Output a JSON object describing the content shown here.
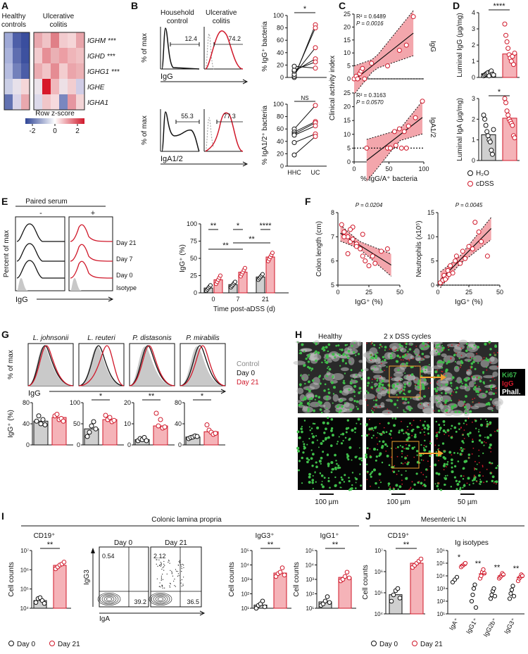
{
  "panels": {
    "A": "A",
    "B": "B",
    "C": "C",
    "D": "D",
    "E": "E",
    "F": "F",
    "G": "G",
    "H": "H",
    "I": "I",
    "J": "J"
  },
  "A": {
    "col_healthy": "Healthy\ncontrols",
    "col_uc": "Ulcerative\ncolitis",
    "genes": [
      "IGHM ***",
      "IGHD ***",
      "IGHG1 ***",
      "IGHE",
      "IGHA1"
    ],
    "legend_title": "Row z-score",
    "legend_ticks": [
      "-2",
      "0",
      "2"
    ],
    "healthy_rows": [
      [
        "#9fa9d6",
        "#4e5fa8",
        "#3a4e9e"
      ],
      [
        "#aab3db",
        "#5f6eb0",
        "#3d519f"
      ],
      [
        "#b6bde0",
        "#7381bb",
        "#4b5da7"
      ],
      [
        "#cbcfe6",
        "#e7e1ea",
        "#f4d6d8"
      ],
      [
        "#6272b2",
        "#d9d4e8",
        "#e9a8ae"
      ]
    ],
    "uc_rows": [
      [
        "#e9a8ae",
        "#f0c3c6",
        "#e07f87",
        "#f2cbce",
        "#f5d5d7",
        "#e8a4aa"
      ],
      [
        "#f2cbce",
        "#e68f96",
        "#eab0b4",
        "#ec9ea4",
        "#efb5b9",
        "#f0c0c3"
      ],
      [
        "#ebacb1",
        "#f1c4c7",
        "#e58c93",
        "#f3cdcf",
        "#eba5ab",
        "#ecb1b5"
      ],
      [
        "#ebe3ea",
        "#d7192a",
        "#f0b8bc",
        "#ede0e6",
        "#f2cdd0",
        "#d0cce6"
      ],
      [
        "#dcd9ea",
        "#f1c6c9",
        "#f6dadd",
        "#7a87bf",
        "#e596a0",
        "#f3d4d6"
      ]
    ],
    "colors": {
      "blue": "#2f4596",
      "red": "#d0182a"
    }
  },
  "B": {
    "household": "Household\ncontrol",
    "uc": "Ulcerative\ncolitis",
    "ylabel": "% of max",
    "igg": "IgG",
    "iga": "IgA1/2",
    "top_vals": [
      "12.4",
      "74.2"
    ],
    "bot_vals": [
      "55.3",
      "77.3"
    ],
    "paired_top": {
      "ylabel": "% IgG⁺ bacteria",
      "ticks": [
        "0",
        "20",
        "40",
        "60",
        "80",
        "100"
      ],
      "sig": "*",
      "hhc": [
        0,
        2,
        5,
        10,
        12,
        18
      ],
      "uc": [
        85,
        80,
        48,
        30,
        25,
        15
      ]
    },
    "paired_bot": {
      "ylabel": "% IgA1/2⁺ bacteria",
      "ticks": [
        "0",
        "20",
        "40",
        "60",
        "80",
        "100"
      ],
      "sig": "NS",
      "hhc": [
        60,
        55,
        52,
        50,
        38,
        18
      ],
      "uc": [
        98,
        72,
        70,
        65,
        52,
        48
      ],
      "xt": [
        "HHC",
        "UC"
      ]
    }
  },
  "C": {
    "ylabel": "Clinical activity index",
    "xlabel": "% IgG/A⁺ bacteria",
    "xticks": [
      "0",
      "50",
      "100"
    ],
    "yticks": [
      "0",
      "5",
      "10",
      "15",
      "20",
      "25"
    ],
    "top": {
      "label": "IgG",
      "r2": "R² = 0.6489",
      "p": "P = 0.0016",
      "x": [
        0,
        3,
        5,
        8,
        10,
        12,
        15,
        25,
        48,
        65,
        75,
        85
      ],
      "y": [
        0,
        1,
        0,
        2,
        3,
        4,
        0,
        6,
        5,
        11,
        13,
        24
      ]
    },
    "bot": {
      "label": "IgA1/2",
      "r2": "R² = 0.3163",
      "p": "P = 0.0570",
      "x": [
        18,
        48,
        52,
        58,
        60,
        65,
        68,
        72,
        75,
        78,
        88,
        98
      ],
      "y": [
        5,
        5,
        5,
        11,
        6,
        12,
        5,
        11,
        5,
        13,
        16,
        22
      ]
    }
  },
  "D": {
    "top": {
      "ylabel": "Luminal IgG (µg/mg)",
      "ticks": [
        "0",
        "1",
        "2",
        "3",
        "4"
      ],
      "sig": "****",
      "h2o": [
        0.1,
        0.15,
        0.2,
        0.25,
        0.3,
        0.1,
        0.35,
        0.4,
        0.2,
        0.15
      ],
      "dss": [
        3.3,
        2.6,
        2.2,
        1.8,
        1.4,
        1.2,
        1.0,
        1.3,
        0.8,
        1.5
      ],
      "mean": [
        0.23,
        1.45
      ]
    },
    "bot": {
      "ylabel": "Luminal IgA (µg/mg)",
      "ticks": [
        "0",
        "1",
        "2",
        "3"
      ],
      "sig": "*",
      "h2o": [
        2.2,
        2.0,
        1.7,
        1.4,
        1.2,
        1.0,
        0.9,
        0.5,
        0.3,
        1.5
      ],
      "dss": [
        3.0,
        2.8,
        2.4,
        2.2,
        2.0,
        1.9,
        1.8,
        1.7,
        1.2,
        1.1
      ],
      "mean": [
        1.25,
        2.05
      ]
    },
    "legend": [
      "H₂O",
      "cDSS"
    ]
  },
  "E": {
    "paired": "Paired serum",
    "minus": "-",
    "plus": "+",
    "ylabel": "Percent of max",
    "xlabel": "IgG",
    "rows": [
      "Day 21",
      "Day 7",
      "Day 0",
      "Isotype"
    ],
    "bar": {
      "ylabel": "IgG⁺ (%)",
      "xlabel": "Time post-aDSS (d)",
      "yticks": [
        "0",
        "25",
        "50",
        "75",
        "100"
      ],
      "xt": [
        "0",
        "7",
        "21"
      ],
      "gray": [
        7,
        12,
        23
      ],
      "red": [
        19,
        30,
        52
      ],
      "sig": [
        "**",
        "*",
        "****",
        "**",
        "**"
      ]
    }
  },
  "F": {
    "left": {
      "p": "P = 0.0204",
      "ylabel": "Colon length (cm)",
      "xlabel": "IgG⁺ (%)",
      "yticks": [
        "5",
        "6",
        "7",
        "8"
      ],
      "xticks": [
        "0",
        "25",
        "50"
      ],
      "x": [
        3,
        5,
        8,
        10,
        12,
        15,
        18,
        20,
        22,
        25,
        5,
        8,
        12,
        15,
        20,
        28,
        30,
        35,
        40,
        10
      ],
      "y": [
        7.5,
        7.2,
        7.0,
        6.8,
        7.4,
        6.7,
        6.5,
        6.2,
        6.0,
        5.8,
        7.0,
        6.3,
        6.9,
        6.6,
        7.1,
        6.2,
        5.9,
        6.4,
        6.5,
        7.3
      ]
    },
    "right": {
      "p": "P = 0.0045",
      "ylabel": "Neutrophils (x10⁵)",
      "xlabel": "IgG⁺ (%)",
      "yticks": [
        "0",
        "5",
        "10",
        "15"
      ],
      "xticks": [
        "0",
        "25",
        "50"
      ],
      "x": [
        2,
        4,
        5,
        7,
        8,
        10,
        12,
        14,
        15,
        18,
        20,
        22,
        25,
        28,
        30,
        33,
        35,
        40,
        6,
        9
      ],
      "y": [
        0.5,
        1.0,
        2.0,
        1.5,
        3.0,
        4.0,
        2.5,
        5.0,
        6.0,
        4.5,
        7.0,
        5.5,
        8.0,
        7.5,
        13.0,
        11.0,
        9.0,
        6.0,
        1.2,
        2.2
      ]
    }
  },
  "G": {
    "species": [
      "L. johnsonii",
      "L. reuteri",
      "P. distasonis",
      "P. mirabilis"
    ],
    "legend": [
      "Control",
      "Day 0",
      "Day 21"
    ],
    "ylabel": "% of max",
    "xlabel": "IgG",
    "bar_ylabel": "IgG⁺ (%)",
    "bars": [
      {
        "yticks": [
          "0",
          "40",
          "80"
        ],
        "ymax": 80,
        "gray": [
          45,
          55,
          40,
          48,
          38
        ],
        "red": [
          55,
          58,
          48,
          50,
          45
        ],
        "gm": 45,
        "rm": 52,
        "sig": ""
      },
      {
        "yticks": [
          "0",
          "50",
          "100"
        ],
        "ymax": 100,
        "gray": [
          20,
          30,
          45,
          55,
          38
        ],
        "red": [
          70,
          60,
          65,
          55,
          58
        ],
        "gm": 38,
        "rm": 60,
        "sig": "*"
      },
      {
        "yticks": [
          "0",
          "10",
          "20"
        ],
        "ymax": 20,
        "gray": [
          2,
          3,
          2.5,
          3.5,
          2
        ],
        "red": [
          15,
          9,
          12,
          8,
          8.5
        ],
        "gm": 2.5,
        "rm": 9,
        "sig": "**"
      },
      {
        "yticks": [
          "0",
          "40",
          "80"
        ],
        "ymax": 80,
        "gray": [
          12,
          14,
          15,
          17,
          16
        ],
        "red": [
          38,
          28,
          24,
          20,
          22
        ],
        "gm": 15,
        "rm": 25,
        "sig": "*"
      }
    ]
  },
  "H": {
    "healthy": "Healthy",
    "dss": "2 x DSS cycles",
    "legend": [
      "Ki67",
      "IgG",
      "Phall."
    ],
    "legend_colors": [
      "#38b54a",
      "#d0182a",
      "#ffffff"
    ],
    "scales": [
      "100 µm",
      "100 µm",
      "50 µm"
    ]
  },
  "I": {
    "title": "Colonic lamina propria",
    "cd19": "CD19⁺",
    "ylabel": "Cell counts",
    "cd19_yticks": [
      "10⁴",
      "10⁵",
      "10⁶",
      "10⁷"
    ],
    "cd19_sig": "**",
    "cd19_d0": [
      4.3,
      4.5,
      4.55,
      4.4,
      4.25
    ],
    "cd19_d21": [
      6.05,
      6.15,
      6.25,
      6.3,
      6.4
    ],
    "flow": {
      "d0": "Day 0",
      "d21": "Day 21",
      "y": "IgG3",
      "x": "IgA",
      "d0_vals": [
        "0.54",
        "39.2"
      ],
      "d21_vals": [
        "2.12",
        "36.5"
      ]
    },
    "igg3": {
      "title": "IgG3⁺",
      "yticks": [
        "10¹",
        "10²",
        "10³",
        "10⁴",
        "10⁵"
      ],
      "sig": "**",
      "d0": [
        1.0,
        1.2,
        1.3,
        1.5,
        1.1
      ],
      "d21": [
        3.2,
        3.4,
        3.5,
        3.8,
        3.3
      ]
    },
    "igg1": {
      "title": "IgG1⁺",
      "yticks": [
        "10¹",
        "10²",
        "10³",
        "10⁴",
        "10⁵"
      ],
      "sig": "**",
      "d0": [
        1.2,
        1.3,
        1.5,
        1.8,
        1.4
      ],
      "d21": [
        2.9,
        3.0,
        3.2,
        3.5,
        3.1
      ]
    },
    "legend": [
      "Day 0",
      "Day 21"
    ]
  },
  "J": {
    "title": "Mesenteric LN",
    "cd19": "CD19⁺",
    "ylabel": "Cell counts",
    "iso_title": "Ig isotypes",
    "cd19_yticks": [
      "10⁴",
      "10⁵",
      "10⁶",
      "10⁷"
    ],
    "cd19_sig": "**",
    "cd19_d0": [
      4.6,
      4.9,
      5.1,
      5.2,
      4.75
    ],
    "cd19_d21": [
      6.2,
      6.3,
      6.4,
      6.5,
      6.6
    ],
    "iso_yticks": [
      "10¹",
      "10²",
      "10³",
      "10⁴",
      "10⁵",
      "10⁶"
    ],
    "iso": [
      {
        "name": "IgA⁺",
        "d0": [
          3.5,
          3.7,
          3.9
        ],
        "d21": [
          4.7,
          4.8,
          4.9,
          5.0
        ],
        "sig": "*"
      },
      {
        "name": "IgG1⁺",
        "d0": [
          2.0,
          2.5,
          3.0,
          3.3,
          1.5
        ],
        "d21": [
          3.8,
          4.0,
          4.3,
          4.5,
          4.2
        ],
        "sig": "**"
      },
      {
        "name": "IgG2b⁺",
        "d0": [
          2.2,
          2.5,
          2.8,
          3.0,
          2.4
        ],
        "d21": [
          3.8,
          3.9,
          4.0,
          4.2,
          4.1
        ],
        "sig": "**"
      },
      {
        "name": "IgG3⁺",
        "d0": [
          2.2,
          2.6,
          2.9,
          3.2,
          2.4
        ],
        "d21": [
          3.6,
          3.8,
          3.9,
          4.1,
          4.0
        ],
        "sig": "**"
      }
    ],
    "legend": [
      "Day 0",
      "Day 21"
    ]
  }
}
